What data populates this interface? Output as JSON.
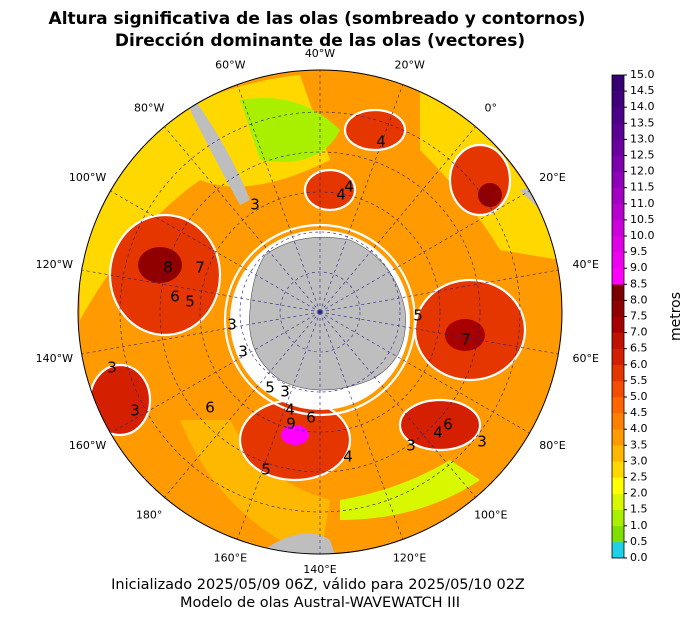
{
  "chart_data": {
    "type": "map",
    "title": [
      "Altura significativa de las olas (sombreado y contornos)",
      "Dirección dominante de las olas (vectores)"
    ],
    "longitude_labels": [
      "40°W",
      "20°W",
      "0°",
      "20°E",
      "40°E",
      "60°E",
      "80°E",
      "100°E",
      "120°E",
      "140°E",
      "160°E",
      "180°",
      "160°W",
      "140°W",
      "120°W",
      "100°W",
      "80°W",
      "60°W"
    ],
    "contour_labels": [
      8,
      6,
      5,
      7,
      3,
      3,
      4,
      4,
      3,
      4,
      6,
      9,
      5,
      4,
      6,
      5,
      3,
      6,
      3,
      4,
      3,
      4,
      5,
      7,
      3,
      3
    ],
    "colorbar": {
      "label": "metros",
      "lim": [
        0,
        15
      ],
      "ticks": [
        {
          "value": 0,
          "label": "0.0"
        },
        {
          "value": 0.5,
          "label": "0.5"
        },
        {
          "value": 1,
          "label": "1.0"
        },
        {
          "value": 1.5,
          "label": "1.5"
        },
        {
          "value": 2,
          "label": "2.0"
        },
        {
          "value": 2.5,
          "label": "2.5"
        },
        {
          "value": 3,
          "label": "3.0"
        },
        {
          "value": 3.5,
          "label": "3.5"
        },
        {
          "value": 4,
          "label": "4.0"
        },
        {
          "value": 4.5,
          "label": "4.5"
        },
        {
          "value": 5,
          "label": "5.0"
        },
        {
          "value": 5.5,
          "label": "5.5"
        },
        {
          "value": 6,
          "label": "6.0"
        },
        {
          "value": 6.5,
          "label": "6.5"
        },
        {
          "value": 7,
          "label": "7.0"
        },
        {
          "value": 7.5,
          "label": "7.5"
        },
        {
          "value": 8,
          "label": "8.0"
        },
        {
          "value": 8.5,
          "label": "8.5"
        },
        {
          "value": 9,
          "label": "9.0"
        },
        {
          "value": 9.5,
          "label": "9.5"
        },
        {
          "value": 10,
          "label": "10.0"
        },
        {
          "value": 10.5,
          "label": "10.5"
        },
        {
          "value": 11,
          "label": "11.0"
        },
        {
          "value": 11.5,
          "label": "11.5"
        },
        {
          "value": 12,
          "label": "12.0"
        },
        {
          "value": 12.5,
          "label": "12.5"
        },
        {
          "value": 13,
          "label": "13.0"
        },
        {
          "value": 13.5,
          "label": "13.5"
        },
        {
          "value": 14,
          "label": "14.0"
        },
        {
          "value": 14.5,
          "label": "14.5"
        },
        {
          "value": 15,
          "label": "15.0"
        }
      ],
      "colors": [
        "#1fd0e6",
        "#7fe000",
        "#a8f000",
        "#d8f800",
        "#ffff00",
        "#ffd800",
        "#ffb800",
        "#ff9a00",
        "#ff8000",
        "#ff6600",
        "#f44c00",
        "#e63600",
        "#d42000",
        "#c01000",
        "#a80000",
        "#900000",
        "#7a0000",
        "#ff00ff",
        "#f000f0",
        "#e000e8",
        "#cc00dd",
        "#b800d0",
        "#a400c4",
        "#9000b8",
        "#7c00ac",
        "#6a00a0",
        "#5a0094",
        "#4c0088",
        "#40007c",
        "#360070"
      ]
    },
    "footer": [
      "Inicializado 2025/05/09 06Z, válido para 2025/05/10 02Z",
      "Modelo de olas Austral-WAVEWATCH III"
    ]
  }
}
